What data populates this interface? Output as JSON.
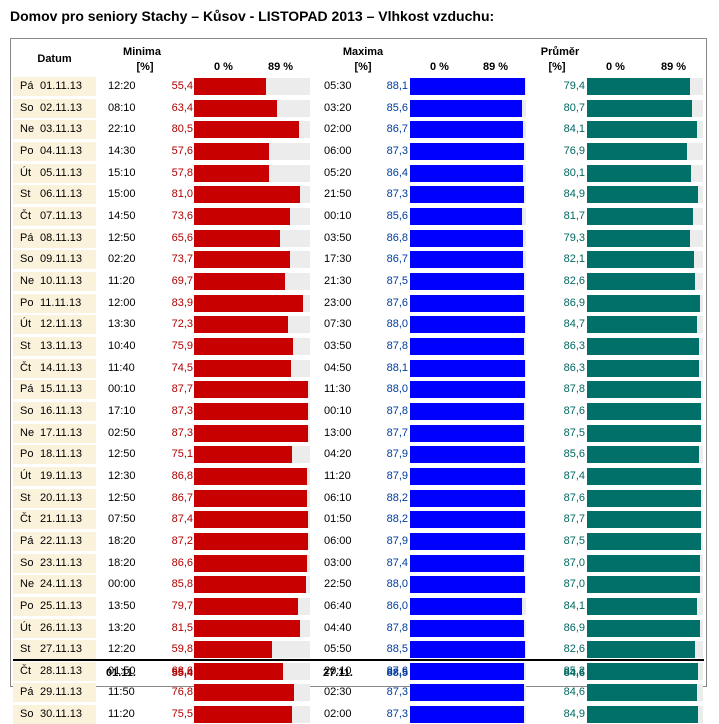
{
  "title": "Domov pro seniory Stachy – Kůsov - LISTOPAD 2013 – Vlhkost vzduchu:",
  "headers": {
    "datum": "Datum",
    "minima": "Minima",
    "maxima": "Maxima",
    "prumer": "Průměr",
    "unit": "[%]",
    "scale_min": "0 %",
    "scale_max": "89 %"
  },
  "colors": {
    "minima": "#c80000",
    "maxima": "#0000ff",
    "prumer": "#007068",
    "min_text": "#b00000",
    "max_text": "#003c9e",
    "avg_text": "#006860"
  },
  "chart_data": {
    "type": "bar",
    "scale": [
      0,
      89
    ],
    "rows": [
      {
        "day": "Pá",
        "date": "01.11.13",
        "min_time": "12:20",
        "min": "55,4",
        "max_time": "05:30",
        "max": "88,1",
        "avg": "79,4"
      },
      {
        "day": "So",
        "date": "02.11.13",
        "min_time": "08:10",
        "min": "63,4",
        "max_time": "03:20",
        "max": "85,6",
        "avg": "80,7"
      },
      {
        "day": "Ne",
        "date": "03.11.13",
        "min_time": "22:10",
        "min": "80,5",
        "max_time": "02:00",
        "max": "86,7",
        "avg": "84,1"
      },
      {
        "day": "Po",
        "date": "04.11.13",
        "min_time": "14:30",
        "min": "57,6",
        "max_time": "06:00",
        "max": "87,3",
        "avg": "76,9"
      },
      {
        "day": "Út",
        "date": "05.11.13",
        "min_time": "15:10",
        "min": "57,8",
        "max_time": "05:20",
        "max": "86,4",
        "avg": "80,1"
      },
      {
        "day": "St",
        "date": "06.11.13",
        "min_time": "15:00",
        "min": "81,0",
        "max_time": "21:50",
        "max": "87,3",
        "avg": "84,9"
      },
      {
        "day": "Čt",
        "date": "07.11.13",
        "min_time": "14:50",
        "min": "73,6",
        "max_time": "00:10",
        "max": "85,6",
        "avg": "81,7"
      },
      {
        "day": "Pá",
        "date": "08.11.13",
        "min_time": "12:50",
        "min": "65,6",
        "max_time": "03:50",
        "max": "86,8",
        "avg": "79,3"
      },
      {
        "day": "So",
        "date": "09.11.13",
        "min_time": "02:20",
        "min": "73,7",
        "max_time": "17:30",
        "max": "86,7",
        "avg": "82,1"
      },
      {
        "day": "Ne",
        "date": "10.11.13",
        "min_time": "11:20",
        "min": "69,7",
        "max_time": "21:30",
        "max": "87,5",
        "avg": "82,6"
      },
      {
        "day": "Po",
        "date": "11.11.13",
        "min_time": "12:00",
        "min": "83,9",
        "max_time": "23:00",
        "max": "87,6",
        "avg": "86,9"
      },
      {
        "day": "Út",
        "date": "12.11.13",
        "min_time": "13:30",
        "min": "72,3",
        "max_time": "07:30",
        "max": "88,0",
        "avg": "84,7"
      },
      {
        "day": "St",
        "date": "13.11.13",
        "min_time": "10:40",
        "min": "75,9",
        "max_time": "03:50",
        "max": "87,8",
        "avg": "86,3"
      },
      {
        "day": "Čt",
        "date": "14.11.13",
        "min_time": "11:40",
        "min": "74,5",
        "max_time": "04:50",
        "max": "88,1",
        "avg": "86,3"
      },
      {
        "day": "Pá",
        "date": "15.11.13",
        "min_time": "00:10",
        "min": "87,7",
        "max_time": "11:30",
        "max": "88,0",
        "avg": "87,8"
      },
      {
        "day": "So",
        "date": "16.11.13",
        "min_time": "17:10",
        "min": "87,3",
        "max_time": "00:10",
        "max": "87,8",
        "avg": "87,6"
      },
      {
        "day": "Ne",
        "date": "17.11.13",
        "min_time": "02:50",
        "min": "87,3",
        "max_time": "13:00",
        "max": "87,7",
        "avg": "87,5"
      },
      {
        "day": "Po",
        "date": "18.11.13",
        "min_time": "12:50",
        "min": "75,1",
        "max_time": "04:20",
        "max": "87,9",
        "avg": "85,6"
      },
      {
        "day": "Út",
        "date": "19.11.13",
        "min_time": "12:30",
        "min": "86,8",
        "max_time": "11:20",
        "max": "87,9",
        "avg": "87,4"
      },
      {
        "day": "St",
        "date": "20.11.13",
        "min_time": "12:50",
        "min": "86,7",
        "max_time": "06:10",
        "max": "88,2",
        "avg": "87,6"
      },
      {
        "day": "Čt",
        "date": "21.11.13",
        "min_time": "07:50",
        "min": "87,4",
        "max_time": "01:50",
        "max": "88,2",
        "avg": "87,7"
      },
      {
        "day": "Pá",
        "date": "22.11.13",
        "min_time": "18:20",
        "min": "87,2",
        "max_time": "06:00",
        "max": "87,9",
        "avg": "87,5"
      },
      {
        "day": "So",
        "date": "23.11.13",
        "min_time": "18:20",
        "min": "86,6",
        "max_time": "03:00",
        "max": "87,4",
        "avg": "87,0"
      },
      {
        "day": "Ne",
        "date": "24.11.13",
        "min_time": "00:00",
        "min": "85,8",
        "max_time": "22:50",
        "max": "88,0",
        "avg": "87,0"
      },
      {
        "day": "Po",
        "date": "25.11.13",
        "min_time": "13:50",
        "min": "79,7",
        "max_time": "06:40",
        "max": "86,0",
        "avg": "84,1"
      },
      {
        "day": "Út",
        "date": "26.11.13",
        "min_time": "13:20",
        "min": "81,5",
        "max_time": "04:40",
        "max": "87,8",
        "avg": "86,9"
      },
      {
        "day": "St",
        "date": "27.11.13",
        "min_time": "12:20",
        "min": "59,8",
        "max_time": "05:50",
        "max": "88,5",
        "avg": "82,6"
      },
      {
        "day": "Čt",
        "date": "28.11.13",
        "min_time": "01:50",
        "min": "68,6",
        "max_time": "20:10",
        "max": "87,6",
        "avg": "85,2"
      },
      {
        "day": "Pá",
        "date": "29.11.13",
        "min_time": "11:50",
        "min": "76,8",
        "max_time": "02:30",
        "max": "87,3",
        "avg": "84,6"
      },
      {
        "day": "So",
        "date": "30.11.13",
        "min_time": "11:20",
        "min": "75,5",
        "max_time": "02:00",
        "max": "87,3",
        "avg": "84,9"
      }
    ],
    "summary": {
      "min_date": "01.11.",
      "min": "55,4",
      "max_date": "27.11.",
      "max": "88,5",
      "avg": "84,6"
    }
  }
}
